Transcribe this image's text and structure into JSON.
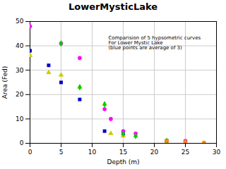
{
  "chart_data": {
    "type": "scatter",
    "title": "LowerMysticLake",
    "xlabel": "Depth (m)",
    "ylabel": "Area (Fed)",
    "annotation": "Comparision of 5 hypsometric curves\nFor Lower Mystic Lake\n(blue points are average of 3)",
    "xlim": [
      0,
      30
    ],
    "ylim": [
      0,
      50
    ],
    "xticks": [
      0,
      5,
      10,
      15,
      20,
      25,
      30
    ],
    "yticks": [
      0,
      10,
      20,
      30,
      40,
      50
    ],
    "grid": true,
    "series": [
      {
        "color": "#0000cc",
        "marker": "square",
        "x": [
          0,
          3,
          5,
          8,
          12,
          15,
          22
        ],
        "values": [
          38,
          32,
          25,
          18,
          5,
          4,
          1
        ]
      },
      {
        "color": "#ff00ff",
        "marker": "circle",
        "x": [
          0,
          5,
          8,
          12,
          13,
          15,
          17,
          22,
          25
        ],
        "values": [
          48,
          41,
          35,
          14,
          10,
          5,
          4,
          1,
          1
        ]
      },
      {
        "color": "#cccc00",
        "marker": "triangle",
        "x": [
          0,
          3,
          5,
          8,
          12,
          13,
          15,
          17,
          22,
          25
        ],
        "values": [
          36,
          29,
          28,
          23,
          16,
          4,
          3,
          3,
          1,
          0.5
        ]
      },
      {
        "color": "#00cc00",
        "marker": "diamond",
        "x": [
          5,
          8,
          12,
          15,
          17,
          22
        ],
        "values": [
          41,
          23,
          16,
          4,
          3,
          1
        ]
      },
      {
        "color": "#ff8800",
        "marker": "circle",
        "x": [
          22,
          25,
          28
        ],
        "values": [
          1,
          0.5,
          0.3
        ]
      }
    ]
  }
}
